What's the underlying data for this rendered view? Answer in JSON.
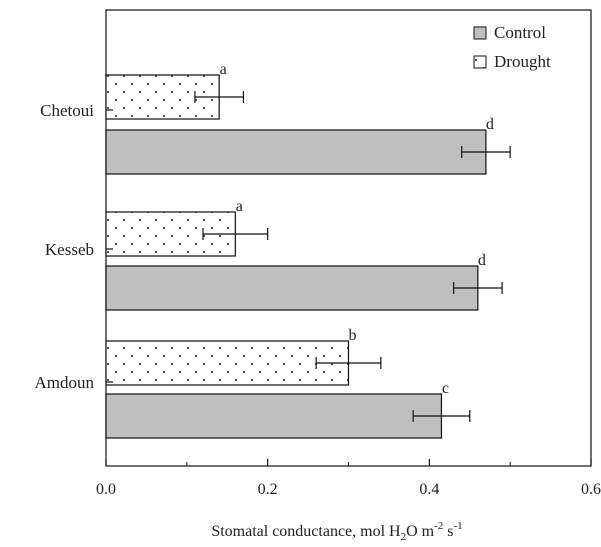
{
  "chart_data": {
    "type": "bar",
    "orientation": "horizontal",
    "categories": [
      "Chetoui",
      "Kesseb",
      "Amdoun"
    ],
    "series": [
      {
        "name": "Control",
        "values": [
          0.47,
          0.46,
          0.415
        ],
        "errors": [
          0.03,
          0.03,
          0.035
        ],
        "significance": [
          "d",
          "d",
          "c"
        ],
        "fill": "#bfbfbf",
        "pattern": "solid"
      },
      {
        "name": "Drought",
        "values": [
          0.14,
          0.16,
          0.3
        ],
        "errors": [
          0.03,
          0.04,
          0.04
        ],
        "significance": [
          "a",
          "a",
          "b"
        ],
        "fill": "#ffffff",
        "pattern": "dotted"
      }
    ],
    "xlabel": {
      "pre": "Stomatal conductance, mol H",
      "sub": "2",
      "mid": "O m",
      "sup1": "-2",
      "mid2": " s",
      "sup2": "-1"
    },
    "xlim": [
      0.0,
      0.6
    ],
    "xticks": [
      "0.0",
      "0.2",
      "0.4",
      "0.6"
    ],
    "grid": false,
    "legend_position": "top-right"
  }
}
